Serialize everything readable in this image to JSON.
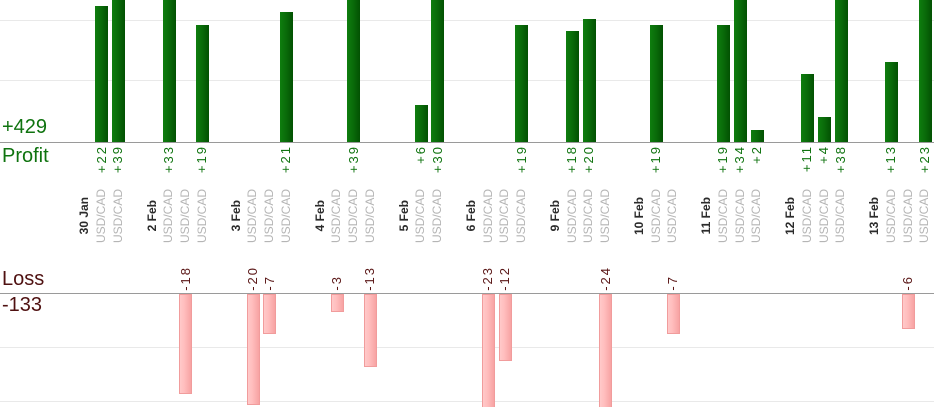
{
  "summary": {
    "profit_total_label": "+429",
    "profit_section_label": "Profit",
    "loss_section_label": "Loss",
    "loss_total_label": "-133"
  },
  "chart_data": {
    "type": "bar",
    "orientation": "vertical",
    "description": "Daily trading profit (top, green) and loss (bottom, pink) per trade",
    "legend_position": "left",
    "grid": true,
    "profit_section": {
      "label": "Profit",
      "total": 429,
      "total_label": "+429",
      "bar_color": "#0a6c0a",
      "text_color": "#0f730f",
      "gridline_values": [
        10,
        20
      ]
    },
    "loss_section": {
      "label": "Loss",
      "total": -133,
      "total_label": "-133",
      "bar_color": "#ffb5b5",
      "text_color": "#5a1616",
      "gridline_values": [
        -10,
        -20
      ]
    },
    "groups": [
      {
        "date": "30 Jan",
        "trades": [
          {
            "instrument": "USD/CAD",
            "value": 22
          },
          {
            "instrument": "USD/CAD",
            "value": 39
          }
        ]
      },
      {
        "date": "2 Feb",
        "trades": [
          {
            "instrument": "USD/CAD",
            "value": 33
          },
          {
            "instrument": "USD/CAD",
            "value": -18
          },
          {
            "instrument": "USD/CAD",
            "value": 19
          }
        ]
      },
      {
        "date": "3 Feb",
        "trades": [
          {
            "instrument": "USD/CAD",
            "value": -20
          },
          {
            "instrument": "USD/CAD",
            "value": -7
          },
          {
            "instrument": "USD/CAD",
            "value": 21
          }
        ]
      },
      {
        "date": "4 Feb",
        "trades": [
          {
            "instrument": "USD/CAD",
            "value": -3
          },
          {
            "instrument": "USD/CAD",
            "value": 39
          },
          {
            "instrument": "USD/CAD",
            "value": -13
          }
        ]
      },
      {
        "date": "5 Feb",
        "trades": [
          {
            "instrument": "USD/CAD",
            "value": 6
          },
          {
            "instrument": "USD/CAD",
            "value": 30
          }
        ]
      },
      {
        "date": "6 Feb",
        "trades": [
          {
            "instrument": "USD/CAD",
            "value": -23
          },
          {
            "instrument": "USD/CAD",
            "value": -12
          },
          {
            "instrument": "USD/CAD",
            "value": 19
          }
        ]
      },
      {
        "date": "9 Feb",
        "trades": [
          {
            "instrument": "USD/CAD",
            "value": 18
          },
          {
            "instrument": "USD/CAD",
            "value": 20
          },
          {
            "instrument": "USD/CAD",
            "value": -24
          }
        ]
      },
      {
        "date": "10 Feb",
        "trades": [
          {
            "instrument": "USD/CAD",
            "value": 19
          },
          {
            "instrument": "USD/CAD",
            "value": -7
          }
        ]
      },
      {
        "date": "11 Feb",
        "trades": [
          {
            "instrument": "USD/CAD",
            "value": 19
          },
          {
            "instrument": "USD/CAD",
            "value": 34
          },
          {
            "instrument": "USD/CAD",
            "value": 2
          }
        ]
      },
      {
        "date": "12 Feb",
        "trades": [
          {
            "instrument": "USD/CAD",
            "value": 11
          },
          {
            "instrument": "USD/CAD",
            "value": 4
          },
          {
            "instrument": "USD/CAD",
            "value": 38
          }
        ]
      },
      {
        "date": "13 Feb",
        "trades": [
          {
            "instrument": "USD/CAD",
            "value": 13
          },
          {
            "instrument": "USD/CAD",
            "value": -6
          },
          {
            "instrument": "USD/CAD",
            "value": 23
          }
        ]
      }
    ]
  }
}
